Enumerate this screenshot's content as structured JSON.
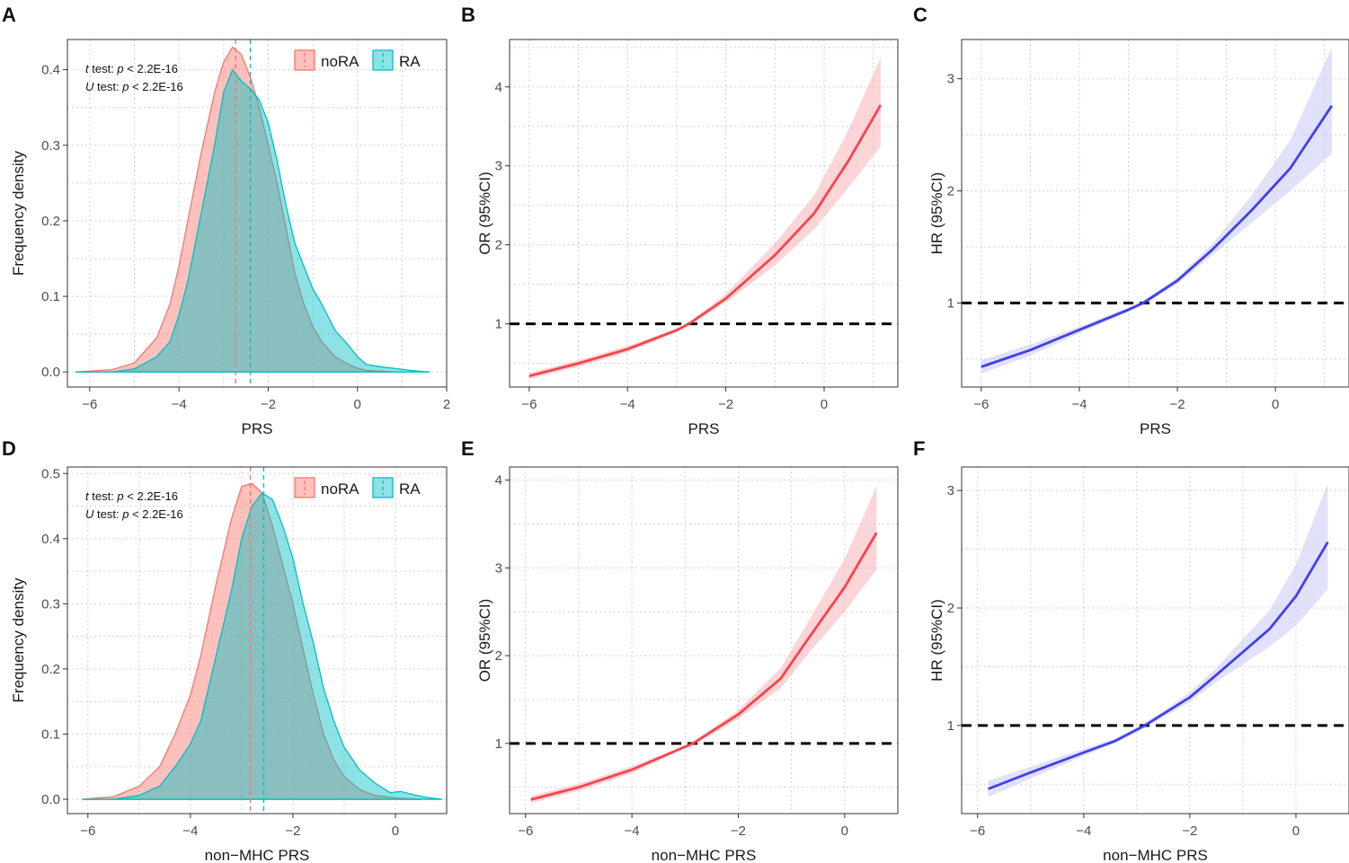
{
  "chart_data": [
    {
      "panel": "A",
      "type": "area",
      "subtype": "density",
      "xlabel": "PRS",
      "ylabel": "Frequency density",
      "xlim": [
        -6.5,
        2.0
      ],
      "ylim": [
        -0.02,
        0.44
      ],
      "xticks": [
        -6,
        -4,
        -2,
        0,
        2
      ],
      "yticks": [
        0.0,
        0.1,
        0.2,
        0.3,
        0.4
      ],
      "xtick_labels": [
        "−6",
        "−4",
        "−2",
        "0",
        "2"
      ],
      "ytick_labels": [
        "0.0",
        "0.1",
        "0.2",
        "0.3",
        "0.4"
      ],
      "legend": [
        "noRA",
        "RA"
      ],
      "legend_position": "top-right",
      "annotations": [
        {
          "test": "t",
          "rest": " test: ",
          "p": "p",
          "value": " < 2.2E-16"
        },
        {
          "test": "U",
          "rest": " test: ",
          "p": "p",
          "value": " < 2.2E-16"
        }
      ],
      "series": [
        {
          "name": "noRA",
          "color": "#F8766D",
          "mean_line": -2.73,
          "x": [
            -6.3,
            -5.5,
            -5.0,
            -4.5,
            -4.2,
            -4.0,
            -3.8,
            -3.5,
            -3.2,
            -3.0,
            -2.8,
            -2.6,
            -2.4,
            -2.2,
            -2.0,
            -1.8,
            -1.6,
            -1.4,
            -1.2,
            -1.0,
            -0.8,
            -0.5,
            -0.2,
            0.0,
            0.2,
            0.5,
            0.8
          ],
          "y": [
            0.0,
            0.003,
            0.012,
            0.045,
            0.09,
            0.14,
            0.2,
            0.29,
            0.37,
            0.41,
            0.43,
            0.42,
            0.39,
            0.35,
            0.3,
            0.25,
            0.19,
            0.13,
            0.09,
            0.06,
            0.04,
            0.02,
            0.01,
            0.005,
            0.002,
            0.001,
            0.0
          ]
        },
        {
          "name": "RA",
          "color": "#00BFC4",
          "mean_line": -2.4,
          "x": [
            -6.3,
            -5.5,
            -5.0,
            -4.5,
            -4.2,
            -4.0,
            -3.8,
            -3.5,
            -3.2,
            -3.0,
            -2.8,
            -2.6,
            -2.4,
            -2.2,
            -2.0,
            -1.8,
            -1.6,
            -1.4,
            -1.2,
            -1.0,
            -0.8,
            -0.5,
            -0.2,
            0.0,
            0.2,
            0.5,
            0.8,
            1.2,
            1.6
          ],
          "y": [
            0.0,
            0.0,
            0.004,
            0.02,
            0.04,
            0.075,
            0.12,
            0.21,
            0.3,
            0.37,
            0.4,
            0.385,
            0.375,
            0.36,
            0.33,
            0.28,
            0.22,
            0.17,
            0.14,
            0.11,
            0.09,
            0.055,
            0.035,
            0.02,
            0.01,
            0.007,
            0.005,
            0.002,
            0.0
          ]
        }
      ]
    },
    {
      "panel": "B",
      "type": "line",
      "subtype": "ci-ribbon",
      "xlabel": "PRS",
      "ylabel": "OR (95%CI)",
      "xlim": [
        -6.4,
        1.5
      ],
      "ylim": [
        0.2,
        4.6
      ],
      "xticks": [
        -6,
        -4,
        -2,
        0
      ],
      "yticks": [
        1,
        2,
        3,
        4
      ],
      "xtick_labels": [
        "−6",
        "−4",
        "−2",
        "0"
      ],
      "ytick_labels": [
        "1",
        "2",
        "3",
        "4"
      ],
      "reference_line": 1,
      "color": "#F8434C",
      "ribbon_color": "#F8B3B6",
      "x": [
        -6.0,
        -5.0,
        -4.0,
        -3.0,
        -2.75,
        -2.0,
        -1.0,
        -0.2,
        0.5,
        1.15
      ],
      "y": [
        0.34,
        0.5,
        0.68,
        0.92,
        1.0,
        1.32,
        1.87,
        2.4,
        3.07,
        3.77
      ],
      "lower": [
        0.3,
        0.46,
        0.64,
        0.9,
        0.98,
        1.27,
        1.74,
        2.2,
        2.73,
        3.25
      ],
      "upper": [
        0.38,
        0.54,
        0.72,
        0.94,
        1.02,
        1.38,
        2.02,
        2.63,
        3.46,
        4.37
      ]
    },
    {
      "panel": "C",
      "type": "line",
      "subtype": "ci-ribbon",
      "xlabel": "PRS",
      "ylabel": "HR (95%CI)",
      "xlim": [
        -6.4,
        1.5
      ],
      "ylim": [
        0.25,
        3.35
      ],
      "xticks": [
        -6,
        -4,
        -2,
        0
      ],
      "yticks": [
        1,
        2,
        3
      ],
      "xtick_labels": [
        "−6",
        "−4",
        "−2",
        "0"
      ],
      "ytick_labels": [
        "1",
        "2",
        "3"
      ],
      "reference_line": 1,
      "color": "#4040E8",
      "ribbon_color": "#C8C8F4",
      "x": [
        -6.0,
        -5.0,
        -4.0,
        -3.0,
        -2.7,
        -2.0,
        -1.3,
        -0.5,
        0.3,
        1.15
      ],
      "y": [
        0.43,
        0.58,
        0.76,
        0.94,
        1.0,
        1.2,
        1.47,
        1.82,
        2.2,
        2.76
      ],
      "lower": [
        0.37,
        0.53,
        0.73,
        0.92,
        0.98,
        1.17,
        1.42,
        1.71,
        2.0,
        2.33
      ],
      "upper": [
        0.49,
        0.63,
        0.79,
        0.96,
        1.02,
        1.23,
        1.52,
        1.95,
        2.45,
        3.28
      ]
    },
    {
      "panel": "D",
      "type": "area",
      "subtype": "density",
      "xlabel": "non−MHC PRS",
      "ylabel": "Frequency density",
      "xlim": [
        -6.4,
        1.0
      ],
      "ylim": [
        -0.022,
        0.51
      ],
      "xticks": [
        -6,
        -4,
        -2,
        0
      ],
      "yticks": [
        0.0,
        0.1,
        0.2,
        0.3,
        0.4,
        0.5
      ],
      "xtick_labels": [
        "−6",
        "−4",
        "−2",
        "0"
      ],
      "ytick_labels": [
        "0.0",
        "0.1",
        "0.2",
        "0.3",
        "0.4",
        "0.5"
      ],
      "legend": [
        "noRA",
        "RA"
      ],
      "legend_position": "top-right",
      "annotations": [
        {
          "test": "t",
          "rest": " test: ",
          "p": "p",
          "value": " < 2.2E-16"
        },
        {
          "test": "U",
          "rest": " test: ",
          "p": "p",
          "value": " < 2.2E-16"
        }
      ],
      "series": [
        {
          "name": "noRA",
          "color": "#F8766D",
          "mean_line": -2.83,
          "x": [
            -6.1,
            -5.5,
            -5.0,
            -4.6,
            -4.3,
            -4.0,
            -3.8,
            -3.5,
            -3.2,
            -3.0,
            -2.8,
            -2.6,
            -2.4,
            -2.2,
            -2.0,
            -1.8,
            -1.6,
            -1.4,
            -1.2,
            -1.0,
            -0.7,
            -0.4,
            0.0,
            0.5
          ],
          "y": [
            0.0,
            0.004,
            0.02,
            0.05,
            0.1,
            0.16,
            0.22,
            0.33,
            0.43,
            0.48,
            0.485,
            0.47,
            0.42,
            0.36,
            0.3,
            0.23,
            0.16,
            0.1,
            0.06,
            0.035,
            0.015,
            0.006,
            0.002,
            0.0
          ]
        },
        {
          "name": "RA",
          "color": "#00BFC4",
          "mean_line": -2.57,
          "x": [
            -6.1,
            -5.5,
            -5.0,
            -4.6,
            -4.3,
            -4.0,
            -3.8,
            -3.5,
            -3.2,
            -3.0,
            -2.8,
            -2.6,
            -2.4,
            -2.2,
            -2.0,
            -1.8,
            -1.6,
            -1.4,
            -1.2,
            -1.0,
            -0.7,
            -0.4,
            -0.1,
            0.1,
            0.3,
            0.6,
            0.9
          ],
          "y": [
            0.0,
            0.0,
            0.006,
            0.02,
            0.05,
            0.085,
            0.12,
            0.22,
            0.32,
            0.4,
            0.45,
            0.47,
            0.46,
            0.42,
            0.37,
            0.3,
            0.24,
            0.17,
            0.12,
            0.08,
            0.045,
            0.025,
            0.01,
            0.012,
            0.008,
            0.003,
            0.0
          ]
        }
      ]
    },
    {
      "panel": "E",
      "type": "line",
      "subtype": "ci-ribbon",
      "xlabel": "non−MHC PRS",
      "ylabel": "OR (95%CI)",
      "xlim": [
        -6.3,
        1.0
      ],
      "ylim": [
        0.2,
        4.15
      ],
      "xticks": [
        -6,
        -4,
        -2,
        0
      ],
      "yticks": [
        1,
        2,
        3,
        4
      ],
      "xtick_labels": [
        "−6",
        "−4",
        "−2",
        "0"
      ],
      "ytick_labels": [
        "1",
        "2",
        "3",
        "4"
      ],
      "reference_line": 1,
      "color": "#F8434C",
      "ribbon_color": "#F8B3B6",
      "x": [
        -5.9,
        -5.0,
        -4.0,
        -3.2,
        -2.85,
        -2.0,
        -1.2,
        -0.7,
        0.0,
        0.6
      ],
      "y": [
        0.36,
        0.5,
        0.7,
        0.91,
        1.0,
        1.33,
        1.74,
        2.18,
        2.78,
        3.4
      ],
      "lower": [
        0.32,
        0.46,
        0.66,
        0.89,
        0.98,
        1.28,
        1.63,
        2.01,
        2.5,
        2.98
      ],
      "upper": [
        0.4,
        0.54,
        0.74,
        0.93,
        1.02,
        1.38,
        1.86,
        2.37,
        3.1,
        3.93
      ]
    },
    {
      "panel": "F",
      "type": "line",
      "subtype": "ci-ribbon",
      "xlabel": "non−MHC PRS",
      "ylabel": "HR (95%CI)",
      "xlim": [
        -6.3,
        1.0
      ],
      "ylim": [
        0.25,
        3.2
      ],
      "xticks": [
        -6,
        -4,
        -2,
        0
      ],
      "yticks": [
        1,
        2,
        3
      ],
      "xtick_labels": [
        "−6",
        "−4",
        "−2",
        "0"
      ],
      "ytick_labels": [
        "1",
        "2",
        "3"
      ],
      "reference_line": 1,
      "color": "#4040E8",
      "ribbon_color": "#C8C8F4",
      "x": [
        -5.8,
        -5.0,
        -4.0,
        -3.4,
        -2.85,
        -2.0,
        -1.5,
        -0.5,
        0.0,
        0.6
      ],
      "y": [
        0.46,
        0.6,
        0.77,
        0.87,
        1.0,
        1.24,
        1.43,
        1.82,
        2.1,
        2.56
      ],
      "lower": [
        0.39,
        0.55,
        0.74,
        0.85,
        0.98,
        1.2,
        1.37,
        1.67,
        1.85,
        2.16
      ],
      "upper": [
        0.53,
        0.65,
        0.8,
        0.89,
        1.02,
        1.28,
        1.49,
        1.98,
        2.37,
        3.06
      ]
    }
  ]
}
